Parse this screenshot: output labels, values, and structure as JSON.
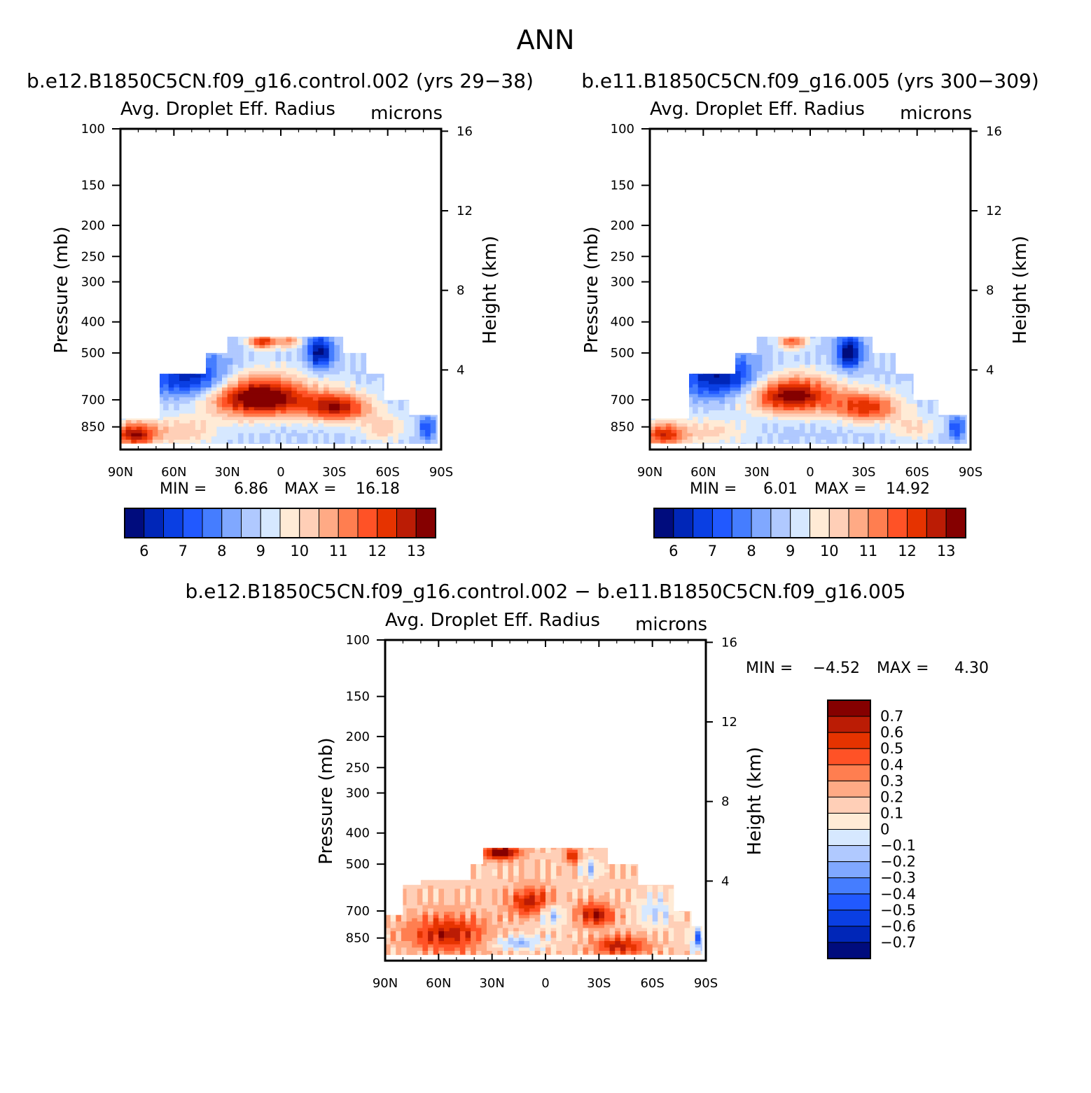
{
  "figure": {
    "title": "ANN"
  },
  "palette": {
    "abs": [
      "#000c7d",
      "#0026b8",
      "#0a3fe3",
      "#2159ff",
      "#457dff",
      "#80a8ff",
      "#b0c9ff",
      "#d6e8ff",
      "#ffebd6",
      "#ffcfb7",
      "#ffaa85",
      "#ff7e50",
      "#ff5226",
      "#e63300",
      "#bb1c05",
      "#850000"
    ],
    "diff": [
      "#000c7d",
      "#0026b8",
      "#0a3fe3",
      "#2159ff",
      "#457dff",
      "#80a8ff",
      "#b0c9ff",
      "#d6e8ff",
      "#ffebd6",
      "#ffcfb7",
      "#ffaa85",
      "#ff7e50",
      "#ff5226",
      "#e63300",
      "#bb1c05",
      "#850000"
    ]
  },
  "chart_data": [
    {
      "id": "control",
      "type": "heatmap",
      "title": "b.e12.B1850C5CN.f09_g16.control.002 (yrs 29−38)",
      "subtitle": "Avg. Droplet Eff. Radius",
      "units": "microns",
      "ylabel": "Pressure (mb)",
      "ylabel_right": "Height (km)",
      "x_ticks": [
        "90N",
        "60N",
        "30N",
        "0",
        "30S",
        "60S",
        "90S"
      ],
      "y_ticks": [
        100,
        150,
        200,
        250,
        300,
        400,
        500,
        700,
        850
      ],
      "y_ticks_right": [
        16,
        12,
        8,
        4
      ],
      "xlim": [
        90,
        -90
      ],
      "ylim": [
        100,
        1000
      ],
      "y_scale": "log",
      "grid": false,
      "stats": {
        "min_label": "MIN =",
        "min": "6.86",
        "max_label": "MAX =",
        "max": "16.18"
      },
      "levels": [
        6,
        6.5,
        7,
        7.5,
        8,
        8.5,
        9,
        9.5,
        10,
        10.5,
        11,
        11.5,
        12,
        12.5,
        13
      ],
      "colorbar_labels": [
        "6",
        "7",
        "8",
        "9",
        "10",
        "11",
        "12",
        "13"
      ],
      "base": 8.9,
      "domain": [
        [
          90,
          800
        ],
        [
          68,
          800
        ],
        [
          68,
          580
        ],
        [
          42,
          580
        ],
        [
          42,
          500
        ],
        [
          30,
          500
        ],
        [
          30,
          445
        ],
        [
          -35,
          445
        ],
        [
          -35,
          500
        ],
        [
          -48,
          500
        ],
        [
          -48,
          580
        ],
        [
          -58,
          580
        ],
        [
          -58,
          700
        ],
        [
          -72,
          700
        ],
        [
          -72,
          780
        ],
        [
          -88,
          780
        ],
        [
          -88,
          960
        ],
        [
          90,
          960
        ]
      ],
      "blobs": [
        {
          "lat": 12,
          "p": 690,
          "slat": 28,
          "sp": 100,
          "amp": 5.2
        },
        {
          "lat": -32,
          "p": 740,
          "slat": 18,
          "sp": 80,
          "amp": 3.8
        },
        {
          "lat": 82,
          "p": 900,
          "slat": 12,
          "sp": 80,
          "amp": 4.0
        },
        {
          "lat": 55,
          "p": 880,
          "slat": 20,
          "sp": 90,
          "amp": 1.5
        },
        {
          "lat": -58,
          "p": 860,
          "slat": 12,
          "sp": 80,
          "amp": 1.5
        },
        {
          "lat": 50,
          "p": 600,
          "slat": 22,
          "sp": 90,
          "amp": -2.8
        },
        {
          "lat": 58,
          "p": 520,
          "slat": 12,
          "sp": 50,
          "amp": -1.0
        },
        {
          "lat": -22,
          "p": 500,
          "slat": 7,
          "sp": 60,
          "amp": -3.2
        },
        {
          "lat": -82,
          "p": 860,
          "slat": 5,
          "sp": 80,
          "amp": -1.8
        },
        {
          "lat": 10,
          "p": 460,
          "slat": 8,
          "sp": 25,
          "amp": 3.5
        },
        {
          "lat": -5,
          "p": 460,
          "slat": 6,
          "sp": 25,
          "amp": 2.0
        }
      ]
    },
    {
      "id": "test",
      "type": "heatmap",
      "title": "b.e11.B1850C5CN.f09_g16.005 (yrs 300−309)",
      "subtitle": "Avg. Droplet Eff. Radius",
      "units": "microns",
      "ylabel": "Pressure (mb)",
      "ylabel_right": "Height (km)",
      "x_ticks": [
        "90N",
        "60N",
        "30N",
        "0",
        "30S",
        "60S",
        "90S"
      ],
      "y_ticks": [
        100,
        150,
        200,
        250,
        300,
        400,
        500,
        700,
        850
      ],
      "y_ticks_right": [
        16,
        12,
        8,
        4
      ],
      "xlim": [
        90,
        -90
      ],
      "ylim": [
        100,
        1000
      ],
      "y_scale": "log",
      "grid": false,
      "stats": {
        "min_label": "MIN =",
        "min": "6.01",
        "max_label": "MAX =",
        "max": "14.92"
      },
      "levels": [
        6,
        6.5,
        7,
        7.5,
        8,
        8.5,
        9,
        9.5,
        10,
        10.5,
        11,
        11.5,
        12,
        12.5,
        13
      ],
      "colorbar_labels": [
        "6",
        "7",
        "8",
        "9",
        "10",
        "11",
        "12",
        "13"
      ],
      "base": 8.9,
      "domain": [
        [
          90,
          800
        ],
        [
          68,
          800
        ],
        [
          68,
          580
        ],
        [
          42,
          580
        ],
        [
          42,
          500
        ],
        [
          30,
          500
        ],
        [
          30,
          445
        ],
        [
          -35,
          445
        ],
        [
          -35,
          500
        ],
        [
          -48,
          500
        ],
        [
          -48,
          580
        ],
        [
          -58,
          580
        ],
        [
          -58,
          700
        ],
        [
          -72,
          700
        ],
        [
          -72,
          780
        ],
        [
          -88,
          780
        ],
        [
          -88,
          960
        ],
        [
          90,
          960
        ]
      ],
      "blobs": [
        {
          "lat": 10,
          "p": 680,
          "slat": 24,
          "sp": 90,
          "amp": 4.6
        },
        {
          "lat": -32,
          "p": 740,
          "slat": 18,
          "sp": 80,
          "amp": 3.4
        },
        {
          "lat": 82,
          "p": 900,
          "slat": 12,
          "sp": 80,
          "amp": 3.4
        },
        {
          "lat": 55,
          "p": 880,
          "slat": 20,
          "sp": 90,
          "amp": 1.2
        },
        {
          "lat": -58,
          "p": 860,
          "slat": 12,
          "sp": 80,
          "amp": 1.2
        },
        {
          "lat": 50,
          "p": 600,
          "slat": 22,
          "sp": 90,
          "amp": -2.9
        },
        {
          "lat": 58,
          "p": 520,
          "slat": 12,
          "sp": 50,
          "amp": -1.2
        },
        {
          "lat": -22,
          "p": 500,
          "slat": 7,
          "sp": 60,
          "amp": -3.4
        },
        {
          "lat": -82,
          "p": 860,
          "slat": 5,
          "sp": 80,
          "amp": -1.8
        },
        {
          "lat": 10,
          "p": 460,
          "slat": 8,
          "sp": 25,
          "amp": 2.8
        }
      ]
    },
    {
      "id": "difference",
      "type": "heatmap",
      "title": "b.e12.B1850C5CN.f09_g16.control.002 − b.e11.B1850C5CN.f09_g16.005",
      "subtitle": "Avg. Droplet Eff. Radius",
      "units": "microns",
      "ylabel": "Pressure (mb)",
      "ylabel_right": "Height (km)",
      "x_ticks": [
        "90N",
        "60N",
        "30N",
        "0",
        "30S",
        "60S",
        "90S"
      ],
      "y_ticks": [
        100,
        150,
        200,
        250,
        300,
        400,
        500,
        700,
        850
      ],
      "y_ticks_right": [
        16,
        12,
        8,
        4
      ],
      "xlim": [
        90,
        -90
      ],
      "ylim": [
        100,
        1000
      ],
      "y_scale": "log",
      "grid": false,
      "stats": {
        "min_label": "MIN =",
        "min": "−4.52",
        "max_label": "MAX =",
        "max": "4.30"
      },
      "levels": [
        -0.7,
        -0.6,
        -0.5,
        -0.4,
        -0.3,
        -0.2,
        -0.1,
        0,
        0.1,
        0.2,
        0.3,
        0.4,
        0.5,
        0.6,
        0.7
      ],
      "colorbar_labels": [
        "0.7",
        "0.6",
        "0.5",
        "0.4",
        "0.3",
        "0.2",
        "0.1",
        "0",
        "−0.1",
        "−0.2",
        "−0.3",
        "−0.4",
        "−0.5",
        "−0.6",
        "−0.7"
      ],
      "base": 0.15,
      "domain": [
        [
          90,
          720
        ],
        [
          80,
          720
        ],
        [
          80,
          580
        ],
        [
          70,
          580
        ],
        [
          70,
          560
        ],
        [
          42,
          560
        ],
        [
          42,
          500
        ],
        [
          35,
          500
        ],
        [
          35,
          445
        ],
        [
          -35,
          445
        ],
        [
          -35,
          500
        ],
        [
          -52,
          500
        ],
        [
          -52,
          580
        ],
        [
          -72,
          580
        ],
        [
          -72,
          700
        ],
        [
          -82,
          700
        ],
        [
          -82,
          780
        ],
        [
          -88,
          780
        ],
        [
          -88,
          960
        ],
        [
          90,
          960
        ]
      ],
      "blobs": [
        {
          "lat": 55,
          "p": 830,
          "slat": 22,
          "sp": 110,
          "amp": 0.5
        },
        {
          "lat": 8,
          "p": 660,
          "slat": 12,
          "sp": 70,
          "amp": 0.5
        },
        {
          "lat": -28,
          "p": 720,
          "slat": 10,
          "sp": 60,
          "amp": 0.55
        },
        {
          "lat": -42,
          "p": 900,
          "slat": 15,
          "sp": 60,
          "amp": 0.5
        },
        {
          "lat": 25,
          "p": 460,
          "slat": 10,
          "sp": 25,
          "amp": 0.7
        },
        {
          "lat": -15,
          "p": 470,
          "slat": 4,
          "sp": 25,
          "amp": 0.5
        },
        {
          "lat": -3,
          "p": 720,
          "slat": 8,
          "sp": 60,
          "amp": -0.35
        },
        {
          "lat": 15,
          "p": 880,
          "slat": 14,
          "sp": 45,
          "amp": -0.35
        },
        {
          "lat": -62,
          "p": 700,
          "slat": 10,
          "sp": 80,
          "amp": -0.25
        },
        {
          "lat": -86,
          "p": 860,
          "slat": 4,
          "sp": 80,
          "amp": -0.5
        },
        {
          "lat": -25,
          "p": 520,
          "slat": 5,
          "sp": 40,
          "amp": -0.3
        }
      ]
    }
  ]
}
